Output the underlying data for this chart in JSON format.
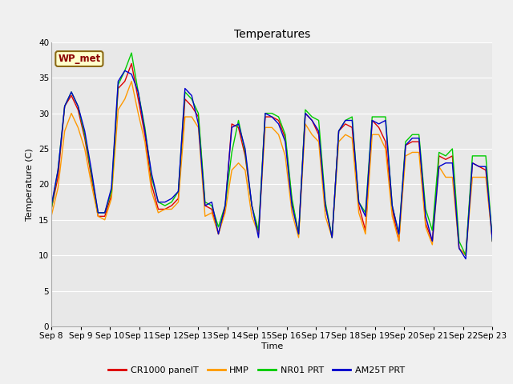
{
  "title": "Temperatures",
  "ylabel": "Temperature (C)",
  "xlabel": "Time",
  "station_label": "WP_met",
  "ylim": [
    0,
    40
  ],
  "yticks": [
    0,
    5,
    10,
    15,
    20,
    25,
    30,
    35,
    40
  ],
  "series_names": [
    "CR1000 panelT",
    "HMP",
    "NR01 PRT",
    "AM25T PRT"
  ],
  "series_colors": [
    "#dd0000",
    "#ff9900",
    "#00cc00",
    "#0000cc"
  ],
  "background_color": "#e8e8e8",
  "fig_background": "#f0f0f0",
  "grid_color": "#ffffff",
  "title_fontsize": 10,
  "label_fontsize": 8,
  "tick_fontsize": 7.5,
  "legend_fontsize": 8,
  "x_dates": [
    "Sep 8",
    "Sep 9",
    "Sep 10",
    "Sep 11",
    "Sep 12",
    "Sep 13",
    "Sep 14",
    "Sep 15",
    "Sep 16",
    "Sep 17",
    "Sep 18",
    "Sep 19",
    "Sep 20",
    "Sep 21",
    "Sep 22",
    "Sep 23"
  ],
  "cr1000_data": [
    16.5,
    21,
    31,
    32.5,
    30.5,
    26.5,
    21,
    15.5,
    15.5,
    18.5,
    33.5,
    34.5,
    37,
    32,
    27,
    20,
    16.5,
    16.5,
    17,
    18,
    32,
    31,
    29.5,
    17,
    16.5,
    13,
    16.5,
    28.5,
    28,
    24,
    17,
    13,
    29.5,
    29.5,
    29,
    26.5,
    17.5,
    13,
    30,
    29,
    27,
    17,
    12.5,
    27.5,
    28.5,
    28,
    17,
    13.5,
    29,
    28,
    26,
    16.5,
    12,
    25.5,
    26,
    26,
    14.5,
    12,
    24,
    23.5,
    24,
    11,
    10,
    23,
    22.5,
    22,
    12
  ],
  "hmp_data": [
    15.5,
    19.5,
    27.5,
    30,
    28,
    25,
    20,
    15.5,
    15,
    18,
    30.5,
    32,
    34.5,
    30,
    26,
    19,
    16,
    16.5,
    16.5,
    17.5,
    29.5,
    29.5,
    28,
    15.5,
    16,
    13,
    16,
    22,
    23,
    22,
    15.5,
    13,
    28,
    28,
    27,
    24,
    16,
    12.5,
    28.5,
    27,
    26,
    15.5,
    12.5,
    26,
    27,
    26.5,
    16,
    13,
    27,
    27,
    25,
    15.5,
    12,
    24,
    24.5,
    24.5,
    14,
    11.5,
    22.5,
    21,
    21,
    11,
    10,
    21,
    21,
    21,
    12
  ],
  "nr01_data": [
    16.5,
    22,
    31,
    33,
    31,
    27,
    21.5,
    16,
    16,
    19,
    34,
    36,
    38.5,
    33,
    28,
    21,
    17.5,
    17,
    17.5,
    19,
    33,
    32,
    30,
    17.5,
    17,
    14,
    17,
    24.5,
    29,
    24.5,
    17,
    13.5,
    30,
    30,
    29.5,
    27,
    18,
    13,
    30.5,
    29.5,
    29,
    17.5,
    12.5,
    27.5,
    29,
    29.5,
    17.5,
    16,
    29.5,
    29.5,
    29.5,
    17,
    13,
    26,
    27,
    27,
    16.5,
    13.5,
    24.5,
    24,
    25,
    12,
    10,
    24,
    24,
    24,
    12
  ],
  "am25t_data": [
    17,
    22,
    31,
    33,
    31,
    27.5,
    22,
    16,
    16,
    19.5,
    34.5,
    36,
    35.5,
    33,
    27.5,
    21.5,
    17.5,
    17.5,
    18,
    19,
    33.5,
    32.5,
    28.5,
    17,
    17.5,
    13,
    17,
    28,
    28.5,
    25,
    17,
    12.5,
    30,
    29.5,
    28.5,
    26,
    17,
    13,
    30,
    29,
    27.5,
    17,
    12.5,
    27.5,
    29,
    29,
    17.5,
    15.5,
    29,
    28.5,
    29,
    17,
    13,
    25.5,
    26.5,
    26.5,
    15.5,
    12,
    22.5,
    23,
    23,
    11,
    9.5,
    23,
    22.5,
    22.5,
    12
  ]
}
